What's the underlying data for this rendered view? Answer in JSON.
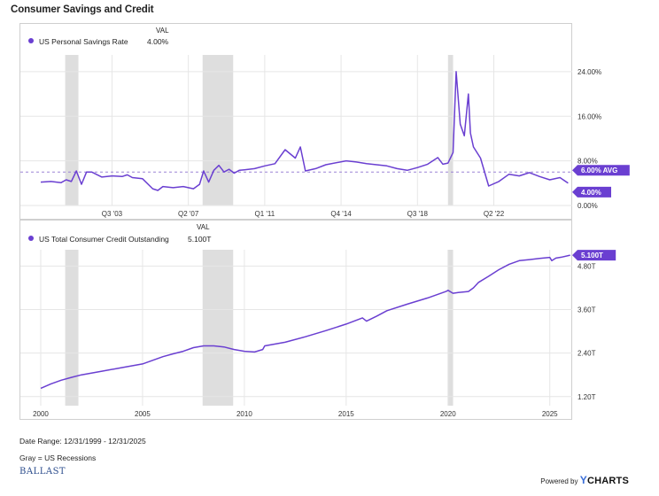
{
  "title": "Consumer Savings and Credit",
  "panel1": {
    "legend_label": "US Personal Savings Rate",
    "val_header": "VAL",
    "val": "4.00%",
    "flag_avg": "6.00% AVG",
    "flag_last": "4.00%"
  },
  "panel2": {
    "legend_label": "US Total Consumer Credit Outstanding",
    "val_header": "VAL",
    "val": "5.100T",
    "flag_last": "5.100T"
  },
  "footer": {
    "date_range": "Date Range: 12/31/1999 - 12/31/2025",
    "note": "Gray = US Recessions",
    "logo": "BALLAST",
    "powered_by": "Powered by",
    "brand": "CHARTS",
    "brand_y": "Y"
  },
  "colors": {
    "series": "#6a3fd1",
    "recession": "#dedede",
    "grid": "#e6e6e6",
    "avg_line": "#9b82d6"
  },
  "chart_data": [
    {
      "type": "line",
      "title": "",
      "series": [
        {
          "name": "US Personal Savings Rate",
          "x": [
            2000.0,
            2000.5,
            2001.0,
            2001.25,
            2001.5,
            2001.75,
            2002.0,
            2002.25,
            2002.5,
            2003.0,
            2003.5,
            2004.0,
            2004.25,
            2004.5,
            2005.0,
            2005.5,
            2005.75,
            2006.0,
            2006.5,
            2007.0,
            2007.5,
            2007.8,
            2008.0,
            2008.25,
            2008.5,
            2008.75,
            2009.0,
            2009.25,
            2009.5,
            2009.75,
            2010.0,
            2010.5,
            2011.0,
            2011.5,
            2012.0,
            2012.5,
            2012.75,
            2013.0,
            2013.5,
            2014.0,
            2015.0,
            2015.5,
            2016.0,
            2017.0,
            2017.5,
            2018.0,
            2018.5,
            2019.0,
            2019.5,
            2019.75,
            2020.0,
            2020.25,
            2020.4,
            2020.6,
            2020.8,
            2021.0,
            2021.1,
            2021.25,
            2021.6,
            2022.0,
            2022.5,
            2023.0,
            2023.5,
            2024.0,
            2024.5,
            2025.0,
            2025.5,
            2025.9
          ],
          "values": [
            4.2,
            4.3,
            4.1,
            4.6,
            4.3,
            6.2,
            3.8,
            6.0,
            6.0,
            5.1,
            5.3,
            5.2,
            5.5,
            5.0,
            4.8,
            3.0,
            2.7,
            3.4,
            3.2,
            3.4,
            3.0,
            3.8,
            6.2,
            4.2,
            6.3,
            7.2,
            6.0,
            6.5,
            5.8,
            6.3,
            6.4,
            6.6,
            7.1,
            7.5,
            10.0,
            8.5,
            10.5,
            6.2,
            6.6,
            7.3,
            8.0,
            7.8,
            7.5,
            7.1,
            6.6,
            6.3,
            6.8,
            7.4,
            8.6,
            7.4,
            7.6,
            9.5,
            24.0,
            14.6,
            12.5,
            20.0,
            13.0,
            10.5,
            8.5,
            3.5,
            4.3,
            5.6,
            5.3,
            5.9,
            5.2,
            4.6,
            5.0,
            4.0
          ]
        }
      ],
      "avg": 6.0,
      "ylim": [
        0,
        27
      ],
      "y_ticks": [
        0,
        8,
        16,
        24
      ],
      "y_tick_labels": [
        "0.00%",
        "8.00%",
        "16.00%",
        "24.00%"
      ],
      "x_tick_labels": [
        "Q3 '03",
        "Q2 '07",
        "Q1 '11",
        "Q4 '14",
        "Q3 '18",
        "Q2 '22"
      ],
      "x_tick_positions": [
        2003.5,
        2007.25,
        2011.0,
        2014.75,
        2018.5,
        2022.25
      ],
      "recessions": [
        [
          2001.2,
          2001.85
        ],
        [
          2007.95,
          2009.45
        ],
        [
          2020.0,
          2020.25
        ]
      ]
    },
    {
      "type": "line",
      "title": "",
      "series": [
        {
          "name": "US Total Consumer Credit Outstanding",
          "x": [
            2000.0,
            2000.5,
            2001.0,
            2001.5,
            2002.0,
            2003.0,
            2004.0,
            2005.0,
            2005.5,
            2006.0,
            2006.5,
            2007.0,
            2007.5,
            2008.0,
            2008.5,
            2009.0,
            2009.5,
            2010.0,
            2010.5,
            2010.9,
            2011.0,
            2012.0,
            2013.0,
            2014.0,
            2015.0,
            2015.8,
            2016.0,
            2016.5,
            2017.0,
            2018.0,
            2019.0,
            2019.9,
            2020.0,
            2020.25,
            2020.5,
            2021.0,
            2021.25,
            2021.5,
            2022.0,
            2022.5,
            2023.0,
            2023.5,
            2024.0,
            2024.5,
            2025.0,
            2025.1,
            2025.3,
            2025.6,
            2026.0
          ],
          "values": [
            1.43,
            1.55,
            1.65,
            1.73,
            1.8,
            1.9,
            2.0,
            2.1,
            2.2,
            2.3,
            2.38,
            2.45,
            2.55,
            2.6,
            2.6,
            2.57,
            2.5,
            2.45,
            2.43,
            2.5,
            2.6,
            2.7,
            2.85,
            3.02,
            3.2,
            3.37,
            3.28,
            3.42,
            3.57,
            3.75,
            3.92,
            4.1,
            4.13,
            4.05,
            4.07,
            4.1,
            4.2,
            4.35,
            4.52,
            4.7,
            4.85,
            4.95,
            4.98,
            5.01,
            5.04,
            4.95,
            5.02,
            5.05,
            5.1
          ]
        }
      ],
      "ylim": [
        0.95,
        5.25
      ],
      "y_ticks": [
        1.2,
        2.4,
        3.6,
        4.8
      ],
      "y_tick_labels": [
        "1.20T",
        "2.40T",
        "3.60T",
        "4.80T"
      ],
      "x_tick_labels": [
        "2000",
        "2005",
        "2010",
        "2015",
        "2020",
        "2025"
      ],
      "x_tick_positions": [
        2000,
        2005,
        2010,
        2015,
        2020,
        2025
      ],
      "recessions": [
        [
          2001.2,
          2001.85
        ],
        [
          2007.95,
          2009.45
        ],
        [
          2020.0,
          2020.25
        ]
      ]
    }
  ]
}
